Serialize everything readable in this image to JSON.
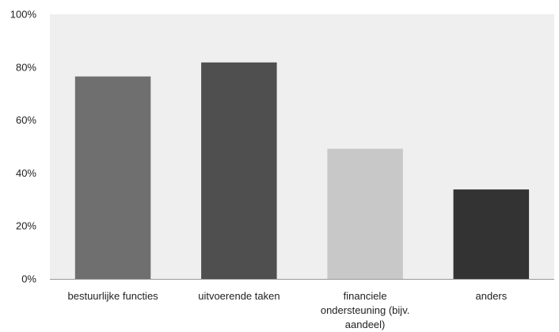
{
  "chart_data": {
    "type": "bar",
    "title": "",
    "xlabel": "",
    "ylabel": "",
    "categories": [
      [
        "bestuurlijke functies"
      ],
      [
        "uitvoerende taken"
      ],
      [
        "financiele",
        "ondersteuning (bijv.",
        "aandeel)"
      ],
      [
        "anders"
      ]
    ],
    "values": [
      0.765,
      0.818,
      0.492,
      0.338
    ],
    "bar_colors": [
      "#6f6f6f",
      "#4f4f4f",
      "#c8c8c8",
      "#333333"
    ],
    "ylim": [
      0,
      1
    ],
    "y_ticks": [
      0,
      0.2,
      0.4,
      0.6,
      0.8,
      1.0
    ],
    "y_tick_labels": [
      "0%",
      "20%",
      "40%",
      "60%",
      "80%",
      "100%"
    ],
    "plot_background": "#efefef",
    "axis_color": "#9a9a9a",
    "grid": false,
    "legend": "none"
  }
}
